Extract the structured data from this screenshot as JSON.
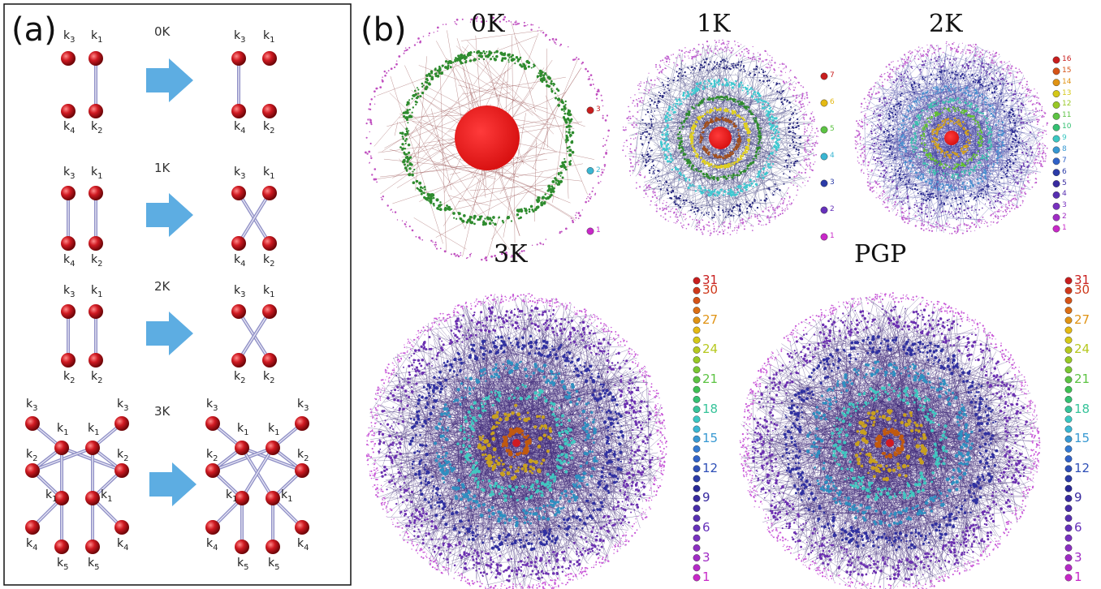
{
  "panel_a": {
    "label": "(a)",
    "steps": [
      {
        "label": "0K"
      },
      {
        "label": "1K"
      },
      {
        "label": "2K"
      },
      {
        "label": "3K"
      }
    ],
    "k": [
      "k",
      "1",
      "2",
      "3",
      "4",
      "5"
    ]
  },
  "panel_b": {
    "label": "(b)",
    "graphs": [
      {
        "title": "0K",
        "levels": [
          1,
          2,
          3
        ],
        "shown": [
          "3",
          "2",
          "1"
        ]
      },
      {
        "title": "1K",
        "levels": [
          1,
          2,
          3,
          4,
          5,
          6,
          7
        ],
        "shown": [
          "7",
          "6",
          "5",
          "4",
          "3",
          "2",
          "1"
        ]
      },
      {
        "title": "2K",
        "levels": 16,
        "shown": [
          "16",
          "15",
          "14",
          "13",
          "12",
          "11",
          "10",
          "9",
          "8",
          "7",
          "6",
          "5",
          "4",
          "3",
          "2",
          "1"
        ]
      },
      {
        "title": "3K",
        "levels": 31,
        "shown": [
          "31",
          "30",
          "27",
          "24",
          "21",
          "18",
          "15",
          "12",
          "9",
          "6",
          "3",
          "1"
        ]
      },
      {
        "title": "PGP",
        "levels": 31,
        "shown": [
          "31",
          "30",
          "27",
          "24",
          "21",
          "18",
          "15",
          "12",
          "9",
          "6",
          "3",
          "1"
        ]
      }
    ]
  },
  "colors": {
    "node": "#c8141c",
    "arrow": "#5dade2",
    "edge": "#8f8fc6"
  }
}
